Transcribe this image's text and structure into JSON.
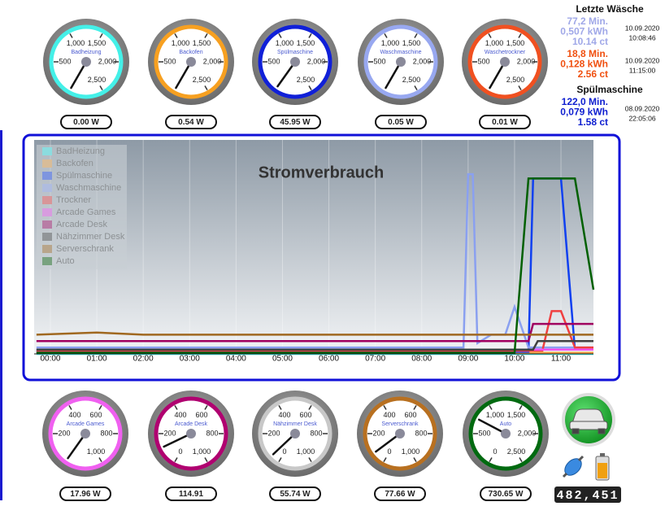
{
  "top_gauges": [
    {
      "name": "Badheizung",
      "color": "#44f0e8",
      "value": 0,
      "value_label": "0.00 W",
      "lim": [
        0,
        2500
      ],
      "ticks": [
        {
          "value": 500,
          "label": "500"
        },
        {
          "value": 1000,
          "label": "1,000"
        },
        {
          "value": 1500,
          "label": "1,500"
        },
        {
          "value": 2000,
          "label": "2,000"
        },
        {
          "value": 2500,
          "label": "2,500"
        }
      ]
    },
    {
      "name": "Backofen",
      "color": "#f7a020",
      "value": 0.54,
      "value_label": "0.54 W",
      "lim": [
        0,
        2500
      ],
      "ticks": [
        {
          "value": 500,
          "label": "500"
        },
        {
          "value": 1000,
          "label": "1,000"
        },
        {
          "value": 1500,
          "label": "1,500"
        },
        {
          "value": 2000,
          "label": "2,000"
        },
        {
          "value": 2500,
          "label": "2,500"
        }
      ]
    },
    {
      "name": "Spülmaschine",
      "color": "#1020d8",
      "value": 45.95,
      "value_label": "45.95 W",
      "lim": [
        0,
        2500
      ],
      "ticks": [
        {
          "value": 500,
          "label": "500"
        },
        {
          "value": 1000,
          "label": "1,000"
        },
        {
          "value": 1500,
          "label": "1,500"
        },
        {
          "value": 2000,
          "label": "2,000"
        },
        {
          "value": 2500,
          "label": "2,500"
        }
      ]
    },
    {
      "name": "Waschmaschine",
      "color": "#98a8f0",
      "value": 0.05,
      "value_label": "0.05 W",
      "lim": [
        0,
        2500
      ],
      "ticks": [
        {
          "value": 500,
          "label": "500"
        },
        {
          "value": 1000,
          "label": "1,000"
        },
        {
          "value": 1500,
          "label": "1,500"
        },
        {
          "value": 2000,
          "label": "2,000"
        },
        {
          "value": 2500,
          "label": "2,500"
        }
      ]
    },
    {
      "name": "Waschetrockner",
      "color": "#f05020",
      "value": 0.01,
      "value_label": "0.01 W",
      "lim": [
        0,
        2500
      ],
      "ticks": [
        {
          "value": 500,
          "label": "500"
        },
        {
          "value": 1000,
          "label": "1,000"
        },
        {
          "value": 1500,
          "label": "1,500"
        },
        {
          "value": 2000,
          "label": "2,000"
        },
        {
          "value": 2500,
          "label": "2,500"
        }
      ]
    }
  ],
  "sidebar": [
    {
      "title": "Letzte Wäsche",
      "entries": [
        {
          "color": "#a0a8e8",
          "lines": [
            "77,2 Min.",
            "0,507 kWh",
            "10.14 ct"
          ],
          "date": "10.09.2020",
          "time": "10:08:46"
        },
        {
          "color": "#f05010",
          "lines": [
            "18,8 Min.",
            "0,128 kWh",
            "2.56 ct"
          ],
          "date": "10.09.2020",
          "time": "11:15:00"
        }
      ]
    },
    {
      "title": "Spülmaschine",
      "entries": [
        {
          "color": "#1020d0",
          "lines": [
            "122,0 Min.",
            "0,079 kWh",
            "1.58 ct"
          ],
          "date": "08.09.2020",
          "time": "22:05:06"
        }
      ]
    }
  ],
  "chart_data": {
    "type": "line",
    "title": "Stromverbrauch",
    "x": [
      -0.3,
      1,
      2,
      3,
      4,
      5,
      6,
      7,
      8,
      8.9,
      9.0,
      9.1,
      9.2,
      9.5,
      9.8,
      10.0,
      10.3,
      10.4,
      10.5,
      10.6,
      10.8,
      11.0,
      11.3,
      11.7
    ],
    "xlim": [
      -0.35,
      11.7
    ],
    "ylim": [
      0,
      100
    ],
    "xticks": [
      {
        "value": 0,
        "label": "00:00"
      },
      {
        "value": 1,
        "label": "01:00"
      },
      {
        "value": 2,
        "label": "02:00"
      },
      {
        "value": 3,
        "label": "03:00"
      },
      {
        "value": 4,
        "label": "04:00"
      },
      {
        "value": 5,
        "label": "05:00"
      },
      {
        "value": 6,
        "label": "06:00"
      },
      {
        "value": 7,
        "label": "07:00"
      },
      {
        "value": 8,
        "label": "08:00"
      },
      {
        "value": 9,
        "label": "09:00"
      },
      {
        "value": 10,
        "label": "10:00"
      },
      {
        "value": 11,
        "label": "11:00"
      }
    ],
    "series": [
      {
        "name": "BadHeizung",
        "color": "#30f0f0",
        "values": [
          0,
          0,
          0,
          0,
          0,
          0,
          0,
          0,
          0,
          0,
          0,
          0,
          0,
          0,
          0,
          0,
          0,
          0,
          0,
          0,
          0,
          0,
          0,
          0
        ]
      },
      {
        "name": "Backofen",
        "color": "#f0a040",
        "values": [
          0.5,
          0.5,
          0.5,
          0.5,
          0.5,
          0.5,
          0.5,
          0.5,
          0.5,
          0.5,
          0.5,
          0.5,
          0.5,
          0.5,
          0.5,
          0.5,
          0.5,
          0.5,
          0.5,
          0.5,
          0.5,
          0.5,
          0.5,
          0.5
        ]
      },
      {
        "name": "Spülmaschine",
        "color": "#1040f0",
        "values": [
          1,
          1,
          1,
          1,
          1,
          1,
          1,
          1,
          1,
          1,
          1,
          1,
          1,
          1,
          1,
          1,
          1,
          82,
          82,
          82,
          82,
          82,
          2,
          2
        ]
      },
      {
        "name": "Waschmaschine",
        "color": "#8aa0f0",
        "values": [
          3,
          3,
          3,
          3,
          3,
          3,
          3,
          3,
          3,
          3,
          84,
          84,
          5,
          9,
          9,
          22,
          3,
          3,
          3,
          3,
          3,
          3,
          3,
          3
        ]
      },
      {
        "name": "Trockner",
        "color": "#f04040",
        "values": [
          1.5,
          1.5,
          1.5,
          1.5,
          1.5,
          1.5,
          1.5,
          1.5,
          1.5,
          1.5,
          1.5,
          1.5,
          1.5,
          1.5,
          1.5,
          1.5,
          1.5,
          1.5,
          1.5,
          1.5,
          20,
          20,
          3,
          3
        ]
      },
      {
        "name": "Arcade Games",
        "color": "#f050f0",
        "values": [
          2,
          2,
          2,
          2,
          2,
          2,
          2,
          2,
          2,
          2,
          2,
          2,
          2,
          2,
          2,
          2,
          2,
          2,
          2,
          2,
          2,
          2,
          2,
          2
        ]
      },
      {
        "name": "Arcade Desk",
        "color": "#a00060",
        "values": [
          6,
          6,
          6,
          6,
          6,
          6,
          6,
          6,
          6,
          6,
          6,
          6,
          6,
          6,
          6,
          6,
          6,
          14,
          14,
          14,
          14,
          14,
          14,
          14
        ]
      },
      {
        "name": "Nähzimmer Desk",
        "color": "#404040",
        "values": [
          2,
          2,
          2,
          2,
          2,
          2,
          2,
          2,
          2,
          2,
          2,
          2,
          2,
          2,
          2,
          2,
          2,
          2,
          6,
          6,
          6,
          6,
          6,
          6
        ]
      },
      {
        "name": "Serverschrank",
        "color": "#a06820",
        "values": [
          9,
          10,
          9,
          9,
          9,
          9,
          9,
          9,
          9,
          9,
          9,
          9,
          9,
          9,
          9,
          9,
          9,
          9,
          9,
          9,
          9,
          9,
          9,
          9
        ]
      },
      {
        "name": "Auto",
        "color": "#006000",
        "values": [
          0.5,
          0.5,
          0.5,
          0.5,
          0.5,
          0.5,
          0.5,
          0.5,
          0.5,
          0.5,
          0.5,
          0.5,
          0.5,
          0.5,
          0.5,
          0.5,
          82,
          82,
          82,
          82,
          82,
          82,
          82,
          30
        ]
      }
    ]
  },
  "bottom_gauges": [
    {
      "name": "Arcade Games",
      "color": "#f060f0",
      "value": 17.96,
      "value_label": "17.96 W",
      "lim": [
        0,
        1000
      ],
      "ticks": [
        {
          "value": 200,
          "label": "200"
        },
        {
          "value": 400,
          "label": "400"
        },
        {
          "value": 600,
          "label": "600"
        },
        {
          "value": 800,
          "label": "800"
        },
        {
          "value": 1000,
          "label": "1,000"
        }
      ]
    },
    {
      "name": "Arcade Desk",
      "color": "#b00070",
      "value": 114.91,
      "value_label": "114.91",
      "lim": [
        0,
        1000
      ],
      "ticks": [
        {
          "value": 0,
          "label": "0"
        },
        {
          "value": 200,
          "label": "200"
        },
        {
          "value": 400,
          "label": "400"
        },
        {
          "value": 600,
          "label": "600"
        },
        {
          "value": 800,
          "label": "800"
        },
        {
          "value": 1000,
          "label": "1,000"
        }
      ]
    },
    {
      "name": "Nähzimmer Desk",
      "color": "#c8c8c8",
      "value": 55.74,
      "value_label": "55.74 W",
      "lim": [
        0,
        1000
      ],
      "ticks": [
        {
          "value": 0,
          "label": "0"
        },
        {
          "value": 200,
          "label": "200"
        },
        {
          "value": 400,
          "label": "400"
        },
        {
          "value": 600,
          "label": "600"
        },
        {
          "value": 800,
          "label": "800"
        },
        {
          "value": 1000,
          "label": "1,000"
        }
      ]
    },
    {
      "name": "Serverschrank",
      "color": "#b87020",
      "value": 77.66,
      "value_label": "77.66 W",
      "lim": [
        0,
        1000
      ],
      "ticks": [
        {
          "value": 0,
          "label": "0"
        },
        {
          "value": 200,
          "label": "200"
        },
        {
          "value": 400,
          "label": "400"
        },
        {
          "value": 600,
          "label": "600"
        },
        {
          "value": 800,
          "label": "800"
        },
        {
          "value": 1000,
          "label": "1,000"
        }
      ]
    },
    {
      "name": "Auto",
      "color": "#006a10",
      "value": 730.65,
      "value_label": "730.65 W",
      "lim": [
        0,
        2500
      ],
      "ticks": [
        {
          "value": 0,
          "label": "0"
        },
        {
          "value": 500,
          "label": "500"
        },
        {
          "value": 1000,
          "label": "1,000"
        },
        {
          "value": 1500,
          "label": "1,500"
        },
        {
          "value": 2000,
          "label": "2,000"
        },
        {
          "value": 2500,
          "label": "2,500"
        }
      ]
    }
  ],
  "meter": "482,451"
}
